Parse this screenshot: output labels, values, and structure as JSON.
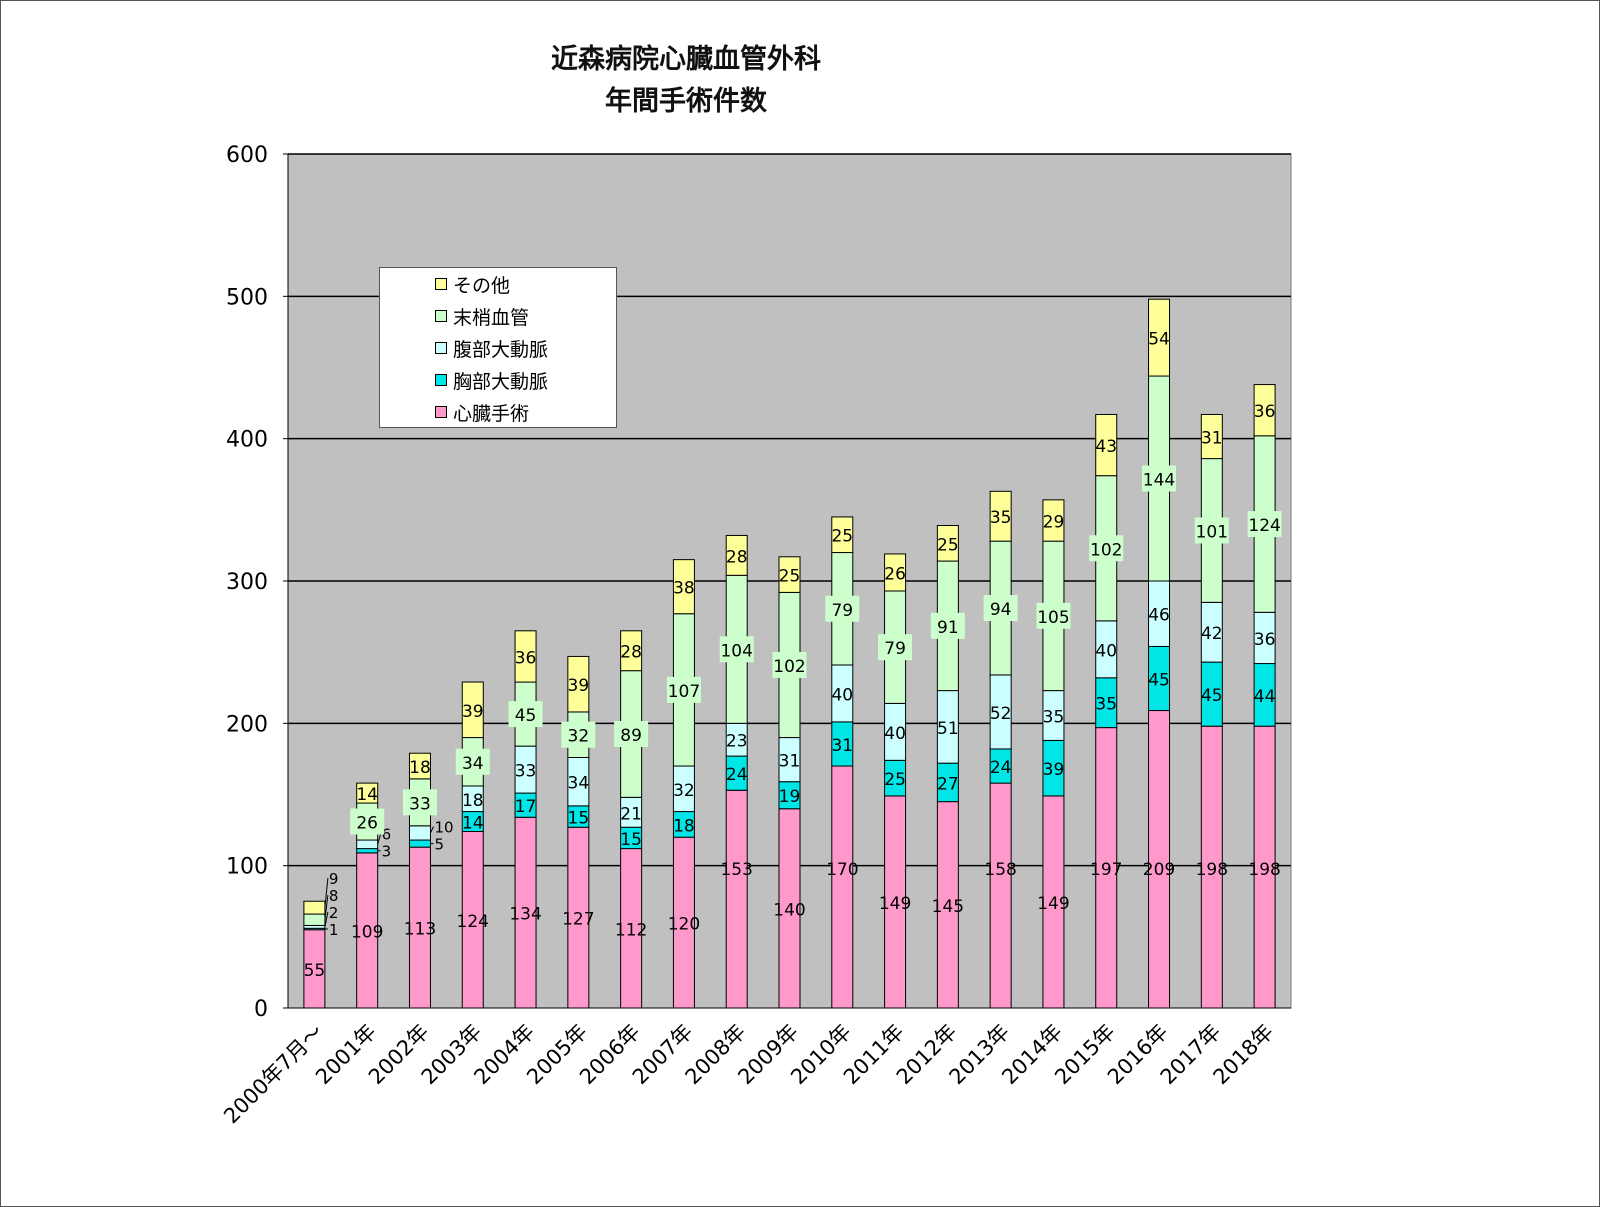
{
  "chart_data": {
    "type": "stacked-bar",
    "title": "近森病院心臓血管外科\n年間手術件数",
    "title_lines": [
      "近森病院心臓血管外科",
      "年間手術件数"
    ],
    "categories": [
      "2000年7月～",
      "2001年",
      "2002年",
      "2003年",
      "2004年",
      "2005年",
      "2006年",
      "2007年",
      "2008年",
      "2009年",
      "2010年",
      "2011年",
      "2012年",
      "2013年",
      "2014年",
      "2015年",
      "2016年",
      "2017年",
      "2018年"
    ],
    "series": [
      {
        "name": "心臓手術",
        "color": "#ff99cc",
        "values": [
          55,
          109,
          113,
          124,
          134,
          127,
          112,
          120,
          153,
          140,
          170,
          149,
          145,
          158,
          149,
          197,
          209,
          198,
          198
        ]
      },
      {
        "name": "胸部大動脈",
        "color": "#00e6e6",
        "values": [
          1,
          3,
          5,
          14,
          17,
          15,
          15,
          18,
          24,
          19,
          31,
          25,
          27,
          24,
          39,
          35,
          45,
          45,
          44
        ]
      },
      {
        "name": "腹部大動脈",
        "color": "#ccffff",
        "values": [
          2,
          6,
          10,
          18,
          33,
          34,
          21,
          32,
          23,
          31,
          40,
          40,
          51,
          52,
          35,
          40,
          46,
          42,
          36
        ]
      },
      {
        "name": "末梢血管",
        "color": "#ccffcc",
        "values": [
          8,
          26,
          33,
          34,
          45,
          32,
          89,
          107,
          104,
          102,
          79,
          79,
          91,
          94,
          105,
          102,
          144,
          101,
          124
        ]
      },
      {
        "name": "その他",
        "color": "#ffff99",
        "values": [
          9,
          14,
          18,
          39,
          36,
          39,
          28,
          38,
          28,
          25,
          25,
          26,
          25,
          35,
          29,
          43,
          54,
          31,
          36
        ]
      }
    ],
    "ylim": [
      0,
      600
    ],
    "yticks": [
      0,
      100,
      200,
      300,
      400,
      500,
      600
    ],
    "grid": true,
    "legend_placement": "top-left",
    "legend_order": [
      "その他",
      "末梢血管",
      "腹部大動脈",
      "胸部大動脈",
      "心臓手術"
    ],
    "plot_background": "#c0c0c0"
  }
}
